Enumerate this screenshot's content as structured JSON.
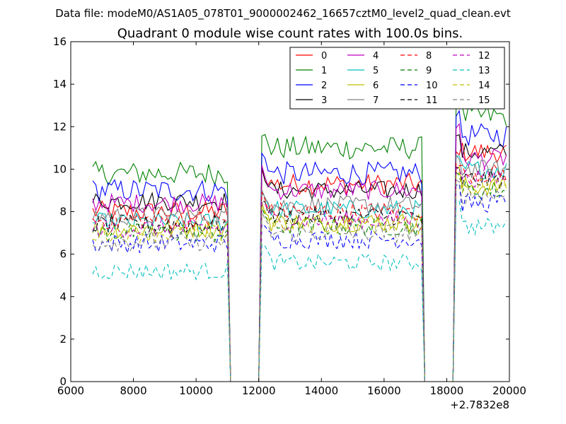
{
  "suptitle": "Data file: modeM0/AS1A05_078T01_9000002462_16657cztM0_level2_quad_clean.evt",
  "chart_data": {
    "type": "line",
    "title": "Quadrant 0 module wise count rates with 100.0s bins.",
    "xlabel": "",
    "ylabel": "",
    "x_offset_label": "+2.7832e8",
    "xlim": [
      6000,
      20000
    ],
    "ylim": [
      0,
      16
    ],
    "xticks": [
      6000,
      8000,
      10000,
      12000,
      14000,
      16000,
      18000,
      20000
    ],
    "xtick_labels": [
      "6000",
      "8000",
      "10000",
      "12000",
      "14000",
      "16000",
      "18000",
      "20000"
    ],
    "yticks": [
      0,
      2,
      4,
      6,
      8,
      10,
      12,
      14,
      16
    ],
    "ytick_labels": [
      "0",
      "2",
      "4",
      "6",
      "8",
      "10",
      "12",
      "14",
      "16"
    ],
    "grid": false,
    "legend_position": "top-right",
    "x_segments": [
      {
        "start": 6700,
        "end": 11000,
        "step": 100
      },
      {
        "start": 11100,
        "end": 12000,
        "step": 100
      },
      {
        "start": 12100,
        "end": 17200,
        "step": 100
      },
      {
        "start": 17300,
        "end": 18200,
        "step": 100
      },
      {
        "start": 18300,
        "end": 19900,
        "step": 100
      }
    ],
    "series": [
      {
        "name": "0",
        "color": "#ff0000",
        "dash": "solid",
        "segment_levels": [
          8.0,
          0,
          9.3,
          0,
          10.8
        ],
        "noise": 0.5,
        "peak": 10.8
      },
      {
        "name": "1",
        "color": "#008000",
        "dash": "solid",
        "segment_levels": [
          9.8,
          0,
          11.0,
          0,
          12.5
        ],
        "noise": 0.55,
        "peak": 13.2
      },
      {
        "name": "2",
        "color": "#0000ff",
        "dash": "solid",
        "segment_levels": [
          9.0,
          0,
          9.8,
          0,
          11.6
        ],
        "noise": 0.55,
        "peak": 12.6
      },
      {
        "name": "3",
        "color": "#000000",
        "dash": "solid",
        "segment_levels": [
          8.5,
          0,
          9.0,
          0,
          10.8
        ],
        "noise": 0.45,
        "peak": 11.5
      },
      {
        "name": "4",
        "color": "#bf00bf",
        "dash": "solid",
        "segment_levels": [
          8.4,
          0,
          9.0,
          0,
          10.5
        ],
        "noise": 0.45,
        "peak": 12.0
      },
      {
        "name": "5",
        "color": "#00bfbf",
        "dash": "solid",
        "segment_levels": [
          7.5,
          0,
          8.1,
          0,
          10.0
        ],
        "noise": 0.45,
        "peak": 10.5
      },
      {
        "name": "6",
        "color": "#bfbf00",
        "dash": "solid",
        "segment_levels": [
          7.2,
          0,
          7.5,
          0,
          9.2
        ],
        "noise": 0.45,
        "peak": 10.0
      },
      {
        "name": "7",
        "color": "#808080",
        "dash": "solid",
        "segment_levels": [
          7.8,
          0,
          8.3,
          0,
          10.0
        ],
        "noise": 0.45,
        "peak": 10.5
      },
      {
        "name": "8",
        "color": "#ff0000",
        "dash": "dashed",
        "segment_levels": [
          7.6,
          0,
          8.0,
          0,
          9.8
        ],
        "noise": 0.45,
        "peak": 10.3
      },
      {
        "name": "9",
        "color": "#008000",
        "dash": "dashed",
        "segment_levels": [
          7.0,
          0,
          7.3,
          0,
          9.0
        ],
        "noise": 0.45,
        "peak": 9.8
      },
      {
        "name": "10",
        "color": "#0000ff",
        "dash": "dashed",
        "segment_levels": [
          6.5,
          0,
          6.7,
          0,
          8.4
        ],
        "noise": 0.45,
        "peak": 9.2
      },
      {
        "name": "11",
        "color": "#000000",
        "dash": "dashed",
        "segment_levels": [
          7.4,
          0,
          7.8,
          0,
          9.5
        ],
        "noise": 0.45,
        "peak": 10.0
      },
      {
        "name": "12",
        "color": "#bf00bf",
        "dash": "dashed",
        "segment_levels": [
          7.2,
          0,
          7.6,
          0,
          9.6
        ],
        "noise": 0.45,
        "peak": 10.1
      },
      {
        "name": "13",
        "color": "#00bfbf",
        "dash": "dashed",
        "segment_levels": [
          5.2,
          0,
          5.6,
          0,
          7.3
        ],
        "noise": 0.4,
        "peak": 8.6
      },
      {
        "name": "14",
        "color": "#bfbf00",
        "dash": "dashed",
        "segment_levels": [
          7.0,
          0,
          7.4,
          0,
          9.2
        ],
        "noise": 0.45,
        "peak": 9.8
      },
      {
        "name": "15",
        "color": "#808080",
        "dash": "dashed",
        "segment_levels": [
          6.6,
          0,
          7.0,
          0,
          8.8
        ],
        "noise": 0.45,
        "peak": 9.4
      }
    ]
  }
}
